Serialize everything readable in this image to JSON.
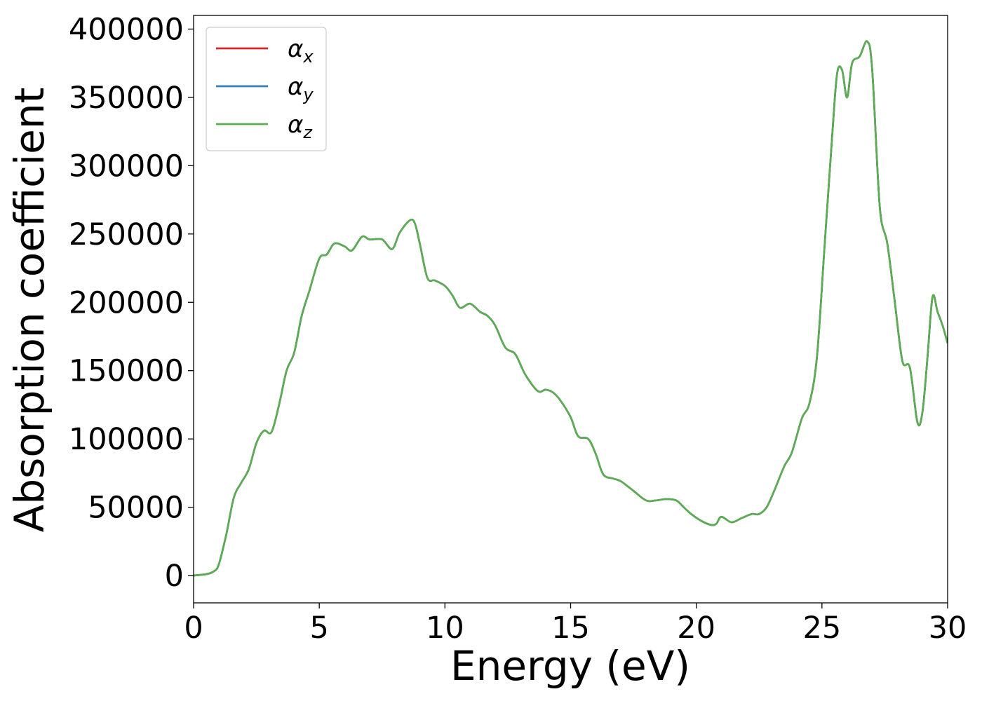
{
  "chart_data": {
    "type": "line",
    "xlabel": "Energy (eV)",
    "ylabel": "Absorption coefficient",
    "xlim": [
      0,
      30
    ],
    "ylim": [
      -20000,
      410000
    ],
    "xticks": [
      0,
      5,
      10,
      15,
      20,
      25,
      30
    ],
    "xtick_labels": [
      "0",
      "5",
      "10",
      "15",
      "20",
      "25",
      "30"
    ],
    "yticks": [
      0,
      50000,
      100000,
      150000,
      200000,
      250000,
      300000,
      350000,
      400000
    ],
    "ytick_labels": [
      "0",
      "50000",
      "100000",
      "150000",
      "200000",
      "250000",
      "300000",
      "350000",
      "400000"
    ],
    "grid": false,
    "legend_position": "top-left",
    "x": [
      0,
      0.5,
      0.8,
      1.0,
      1.3,
      1.6,
      1.9,
      2.2,
      2.5,
      2.8,
      3.1,
      3.4,
      3.7,
      4.0,
      4.3,
      4.6,
      5.0,
      5.3,
      5.6,
      6.0,
      6.3,
      6.7,
      7.0,
      7.5,
      7.9,
      8.2,
      8.6,
      8.8,
      9.0,
      9.3,
      9.6,
      10.0,
      10.3,
      10.6,
      11.0,
      11.4,
      11.7,
      12.0,
      12.4,
      12.8,
      13.2,
      13.7,
      14.0,
      14.3,
      14.6,
      15.0,
      15.3,
      15.7,
      16.0,
      16.3,
      16.7,
      17.0,
      17.5,
      18.0,
      18.4,
      18.8,
      19.2,
      19.5,
      19.8,
      20.2,
      20.6,
      20.8,
      21.0,
      21.4,
      21.8,
      22.2,
      22.5,
      22.8,
      23.1,
      23.5,
      23.8,
      24.2,
      24.5,
      24.8,
      25.1,
      25.4,
      25.6,
      25.8,
      26.0,
      26.2,
      26.5,
      26.8,
      27.0,
      27.3,
      27.6,
      27.9,
      28.2,
      28.5,
      28.8,
      29.0,
      29.2,
      29.4,
      29.6,
      29.8,
      30.0
    ],
    "series": [
      {
        "name": "αx",
        "color": "#d62728",
        "values": [
          0,
          1000,
          3000,
          8000,
          30000,
          57000,
          68000,
          78000,
          97000,
          106000,
          105000,
          125000,
          150000,
          163000,
          190000,
          208000,
          232000,
          235000,
          243000,
          241000,
          238000,
          248000,
          246000,
          246000,
          239000,
          251000,
          260000,
          258000,
          243000,
          218000,
          216000,
          212000,
          205000,
          196000,
          199000,
          193000,
          190000,
          183000,
          167000,
          162000,
          147000,
          135000,
          136000,
          134000,
          128000,
          116000,
          102000,
          100000,
          89000,
          74000,
          71000,
          69000,
          62000,
          55000,
          55000,
          56000,
          55000,
          50000,
          45000,
          40000,
          37000,
          38000,
          43000,
          39000,
          42000,
          45000,
          45000,
          50000,
          62000,
          80000,
          90000,
          115000,
          126000,
          160000,
          240000,
          320000,
          367000,
          370000,
          350000,
          375000,
          380000,
          391000,
          370000,
          270000,
          243000,
          200000,
          157000,
          152000,
          112000,
          120000,
          160000,
          204000,
          193000,
          183000,
          170000
        ]
      },
      {
        "name": "αy",
        "color": "#3a7fb8",
        "values": [
          0,
          1000,
          3000,
          8000,
          30000,
          57000,
          68000,
          78000,
          97000,
          106000,
          105000,
          125000,
          150000,
          163000,
          190000,
          208000,
          232000,
          235000,
          243000,
          241000,
          238000,
          248000,
          246000,
          246000,
          239000,
          251000,
          260000,
          258000,
          243000,
          218000,
          216000,
          212000,
          205000,
          196000,
          199000,
          193000,
          190000,
          183000,
          167000,
          162000,
          147000,
          135000,
          136000,
          134000,
          128000,
          116000,
          102000,
          100000,
          89000,
          74000,
          71000,
          69000,
          62000,
          55000,
          55000,
          56000,
          55000,
          50000,
          45000,
          40000,
          37000,
          38000,
          43000,
          39000,
          42000,
          45000,
          45000,
          50000,
          62000,
          80000,
          90000,
          115000,
          126000,
          160000,
          240000,
          320000,
          367000,
          370000,
          350000,
          375000,
          380000,
          391000,
          370000,
          270000,
          243000,
          200000,
          157000,
          152000,
          112000,
          120000,
          160000,
          204000,
          193000,
          183000,
          170000
        ]
      },
      {
        "name": "αz",
        "color": "#5aad50",
        "values": [
          0,
          1000,
          3000,
          8000,
          30000,
          57000,
          68000,
          78000,
          97000,
          106000,
          105000,
          125000,
          150000,
          163000,
          190000,
          208000,
          232000,
          235000,
          243000,
          241000,
          238000,
          248000,
          246000,
          246000,
          239000,
          251000,
          260000,
          258000,
          243000,
          218000,
          216000,
          212000,
          205000,
          196000,
          199000,
          193000,
          190000,
          183000,
          167000,
          162000,
          147000,
          135000,
          136000,
          134000,
          128000,
          116000,
          102000,
          100000,
          89000,
          74000,
          71000,
          69000,
          62000,
          55000,
          55000,
          56000,
          55000,
          50000,
          45000,
          40000,
          37000,
          38000,
          43000,
          39000,
          42000,
          45000,
          45000,
          50000,
          62000,
          80000,
          90000,
          115000,
          126000,
          160000,
          240000,
          320000,
          367000,
          370000,
          350000,
          375000,
          380000,
          391000,
          370000,
          270000,
          243000,
          200000,
          157000,
          152000,
          112000,
          120000,
          160000,
          204000,
          193000,
          183000,
          170000
        ]
      }
    ],
    "legend": [
      {
        "symbol": "α",
        "sub": "x",
        "color": "#d62728"
      },
      {
        "symbol": "α",
        "sub": "y",
        "color": "#3a7fb8"
      },
      {
        "symbol": "α",
        "sub": "z",
        "color": "#5aad50"
      }
    ]
  }
}
